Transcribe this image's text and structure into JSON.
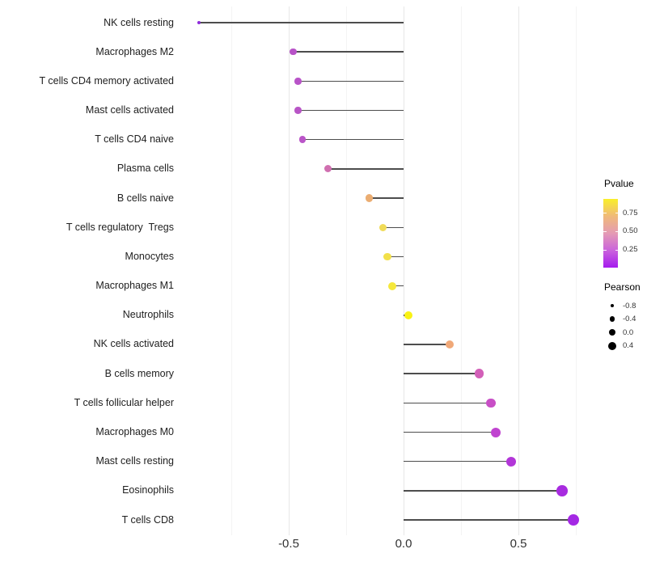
{
  "figure": {
    "background": "#FFFFFF"
  },
  "chart_data": {
    "type": "lollipop",
    "orientation": "horizontal",
    "title": "",
    "xlabel": "",
    "ylabel": "",
    "xlim": [
      -0.97,
      0.83
    ],
    "baseline": 0,
    "grid": {
      "major": [
        -0.5,
        0,
        0.5
      ],
      "minor": [
        -0.75,
        -0.25,
        0.25,
        0.75
      ],
      "major_color": "#E7E7E7",
      "minor_color": "#F4F4F4"
    },
    "x_ticks": [
      {
        "value": -0.5,
        "label": "-0.5"
      },
      {
        "value": 0.0,
        "label": "0.0"
      },
      {
        "value": 0.5,
        "label": "0.5"
      }
    ],
    "stem_color": "#4D4D4D",
    "categories": [
      "NK cells resting",
      "Macrophages M2",
      "T cells CD4 memory activated",
      "Mast cells activated",
      "T cells CD4 naive",
      "Plasma cells",
      "B cells naive",
      "T cells regulatory  Tregs",
      "Monocytes",
      "Macrophages M1",
      "Neutrophils",
      "NK cells activated",
      "B cells memory",
      "T cells follicular helper",
      "Macrophages M0",
      "Mast cells resting",
      "Eosinophils",
      "T cells CD8"
    ],
    "points": [
      {
        "category": "NK cells resting",
        "pearson": -0.89,
        "color": "#8E2BDA",
        "diameter": 4
      },
      {
        "category": "Macrophages M2",
        "pearson": -0.48,
        "color": "#B853C8",
        "diameter": 8.5
      },
      {
        "category": "T cells CD4 memory activated",
        "pearson": -0.46,
        "color": "#B853C8",
        "diameter": 8.5
      },
      {
        "category": "Mast cells activated",
        "pearson": -0.46,
        "color": "#B855C6",
        "diameter": 8.5
      },
      {
        "category": "T cells CD4 naive",
        "pearson": -0.44,
        "color": "#BA55C8",
        "diameter": 8.5
      },
      {
        "category": "Plasma cells",
        "pearson": -0.33,
        "color": "#D06FB0",
        "diameter": 9
      },
      {
        "category": "B cells naive",
        "pearson": -0.15,
        "color": "#EBAD72",
        "diameter": 9.5
      },
      {
        "category": "T cells regulatory  Tregs",
        "pearson": -0.09,
        "color": "#F0DB58",
        "diameter": 9.5
      },
      {
        "category": "Monocytes",
        "pearson": -0.07,
        "color": "#F2E04A",
        "diameter": 9.5
      },
      {
        "category": "Macrophages M1",
        "pearson": -0.05,
        "color": "#F5E83C",
        "diameter": 10
      },
      {
        "category": "Neutrophils",
        "pearson": 0.02,
        "color": "#F9F214",
        "diameter": 10
      },
      {
        "category": "NK cells activated",
        "pearson": 0.2,
        "color": "#F0A878",
        "diameter": 10.5
      },
      {
        "category": "B cells memory",
        "pearson": 0.33,
        "color": "#D25FB8",
        "diameter": 11.5
      },
      {
        "category": "T cells follicular helper",
        "pearson": 0.38,
        "color": "#C84FC6",
        "diameter": 11.5
      },
      {
        "category": "Macrophages M0",
        "pearson": 0.4,
        "color": "#C044D0",
        "diameter": 12
      },
      {
        "category": "Mast cells resting",
        "pearson": 0.47,
        "color": "#B236D8",
        "diameter": 12
      },
      {
        "category": "Eosinophils",
        "pearson": 0.69,
        "color": "#A82BE0",
        "diameter": 13.5
      },
      {
        "category": "T cells CD8",
        "pearson": 0.74,
        "color": "#A428E4",
        "diameter": 14
      }
    ],
    "legends": {
      "pvalue": {
        "title": "Pvalue",
        "gradient_stops": [
          "#F9EF2A",
          "#F0BA79",
          "#E49BB4",
          "#CA63DC",
          "#A51BEE"
        ],
        "ticks": [
          {
            "label": "0.75",
            "pos": 0.2
          },
          {
            "label": "0.50",
            "pos": 0.47
          },
          {
            "label": "0.25",
            "pos": 0.74
          }
        ]
      },
      "pearson": {
        "title": "Pearson",
        "dot_color": "#000000",
        "items": [
          {
            "label": "-0.8",
            "diameter": 4.5
          },
          {
            "label": "-0.4",
            "diameter": 6.5
          },
          {
            "label": "0.0",
            "diameter": 8.5
          },
          {
            "label": "0.4",
            "diameter": 10
          }
        ]
      }
    }
  }
}
